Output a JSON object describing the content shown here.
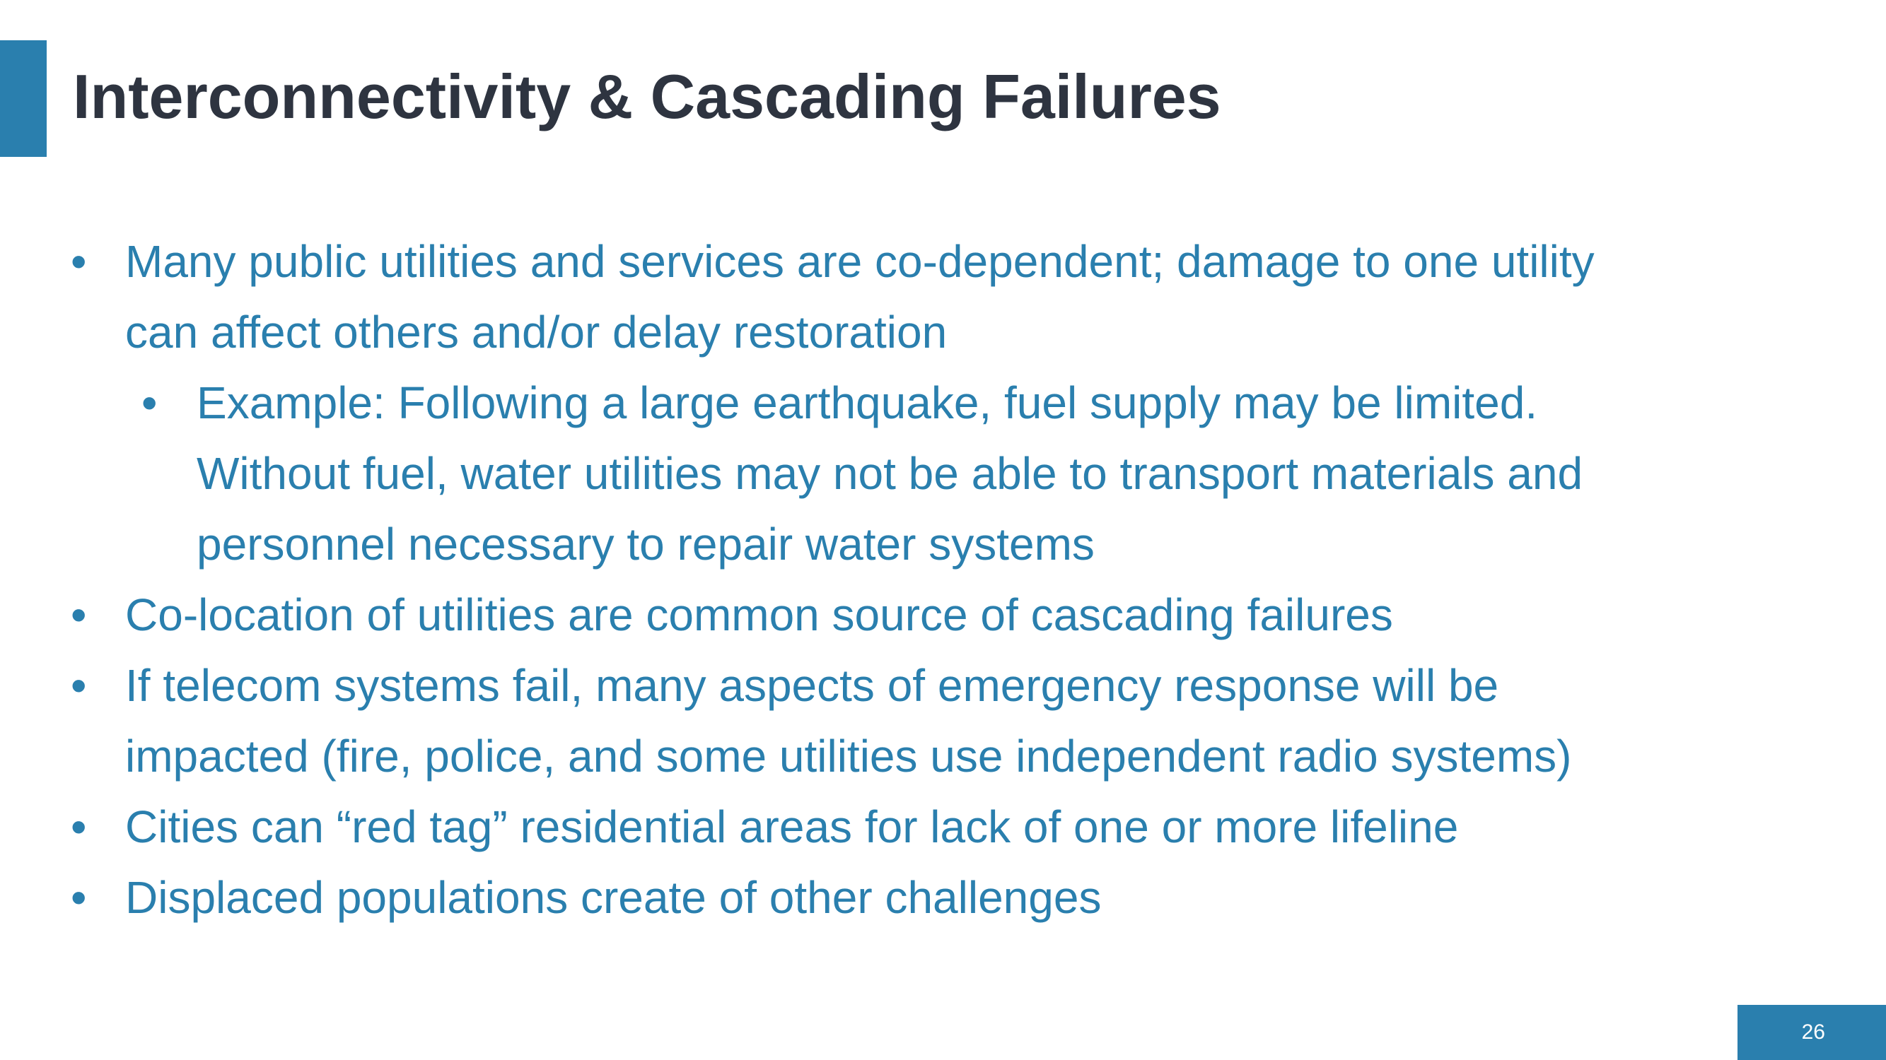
{
  "slide": {
    "title": "Interconnectivity & Cascading Failures",
    "page_number": "26",
    "accent_color": "#2a7fae",
    "title_color": "#2e3440",
    "bullet_glyph": "•",
    "bullets": [
      {
        "level": 1,
        "lines": [
          "Many public utilities and services are co-dependent; damage to one utility",
          "can affect others and/or delay restoration"
        ]
      },
      {
        "level": 2,
        "lines": [
          "Example: Following a large earthquake, fuel supply may be limited.",
          "Without fuel, water utilities may not be able to transport materials and",
          "personnel necessary to repair water systems"
        ]
      },
      {
        "level": 1,
        "lines": [
          "Co-location of utilities are common source of cascading failures"
        ]
      },
      {
        "level": 1,
        "lines": [
          "If telecom systems fail, many aspects of emergency response will be",
          "impacted (fire, police, and some utilities use independent radio systems)"
        ]
      },
      {
        "level": 1,
        "lines": [
          "Cities can “red tag” residential areas for lack of one or more lifeline"
        ]
      },
      {
        "level": 1,
        "lines": [
          "Displaced populations create of other challenges"
        ]
      }
    ]
  }
}
